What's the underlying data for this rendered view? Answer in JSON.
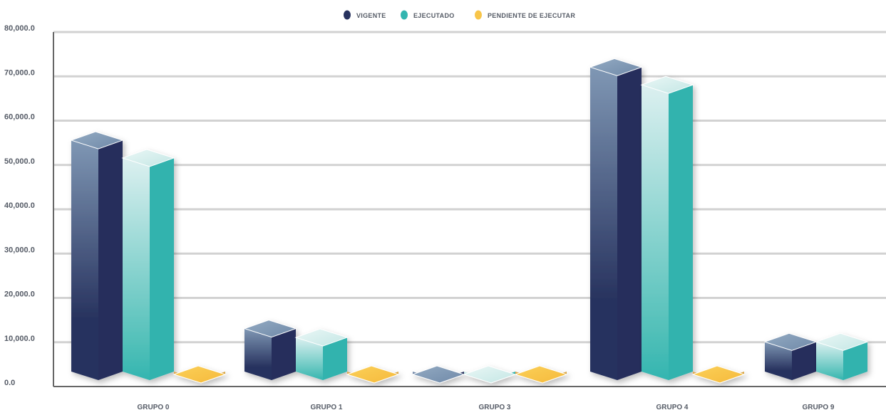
{
  "chart_data": {
    "type": "bar",
    "categories": [
      "GRUPO 0",
      "GRUPO 1",
      "GRUPO 3",
      "GRUPO 4",
      "GRUPO 9"
    ],
    "series": [
      {
        "name": "VIGENTE",
        "values": [
          57500,
          15000,
          500,
          74000,
          12000
        ],
        "color": "#27325e",
        "color_light": "#7f97b4"
      },
      {
        "name": "EJECUTADO",
        "values": [
          53500,
          13000,
          500,
          70000,
          12000
        ],
        "color": "#33b5b0",
        "color_light": "#dcf0f0"
      },
      {
        "name": "PENDIENTE DE EJECUTAR",
        "values": [
          4000,
          2000,
          500,
          4000,
          null
        ],
        "color": "#f8c549",
        "color_light": "#fde3b0"
      }
    ],
    "y_ticks": [
      "0.0",
      "10,000.0",
      "20,000.0",
      "30,000.0",
      "40,000.0",
      "50,000.0",
      "60,000.0",
      "70,000.0",
      "80,000.0"
    ],
    "ylim": [
      0,
      80000
    ],
    "grid": true,
    "legend": "top-center",
    "style": "3d-bar"
  }
}
